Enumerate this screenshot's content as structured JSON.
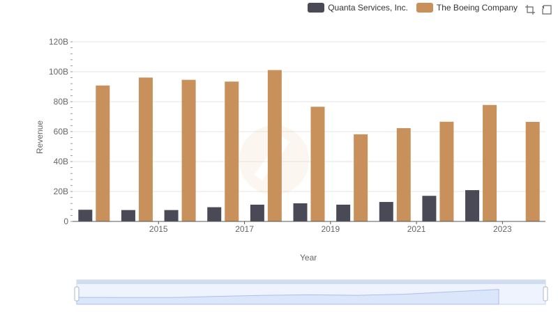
{
  "legend": {
    "series_a": "Quanta Services, Inc.",
    "series_b": "The Boeing Company"
  },
  "colors": {
    "series_a": "#4a4a56",
    "series_b": "#c8915c",
    "grid": "#e6e6e6",
    "slider_fill": "#dbe6fb"
  },
  "toolbox": {
    "restore_icon": "restore-icon",
    "zoom_icon": "zoom-icon"
  },
  "chart_data": {
    "type": "bar",
    "categories": [
      "2014",
      "2015",
      "2016",
      "2017",
      "2018",
      "2019",
      "2020",
      "2021",
      "2022",
      "2023",
      "2024"
    ],
    "x_tick_labels": [
      "2015",
      "2017",
      "2019",
      "2021",
      "2023"
    ],
    "y_tick_labels": [
      "0",
      "20B",
      "40B",
      "60B",
      "80B",
      "100B",
      "120B"
    ],
    "ylim": [
      0,
      120
    ],
    "xlabel": "Year",
    "ylabel": "Revenue",
    "series": [
      {
        "name": "Quanta Services, Inc.",
        "values": [
          7.8,
          7.6,
          7.6,
          9.5,
          11.2,
          12.1,
          11.2,
          13.0,
          17.1,
          20.9,
          null
        ]
      },
      {
        "name": "The Boeing Company",
        "values": [
          90.8,
          96.1,
          94.6,
          93.4,
          101.1,
          76.6,
          58.2,
          62.3,
          66.6,
          77.8,
          66.5
        ]
      }
    ],
    "legend_position": "top-right",
    "grid": true
  }
}
